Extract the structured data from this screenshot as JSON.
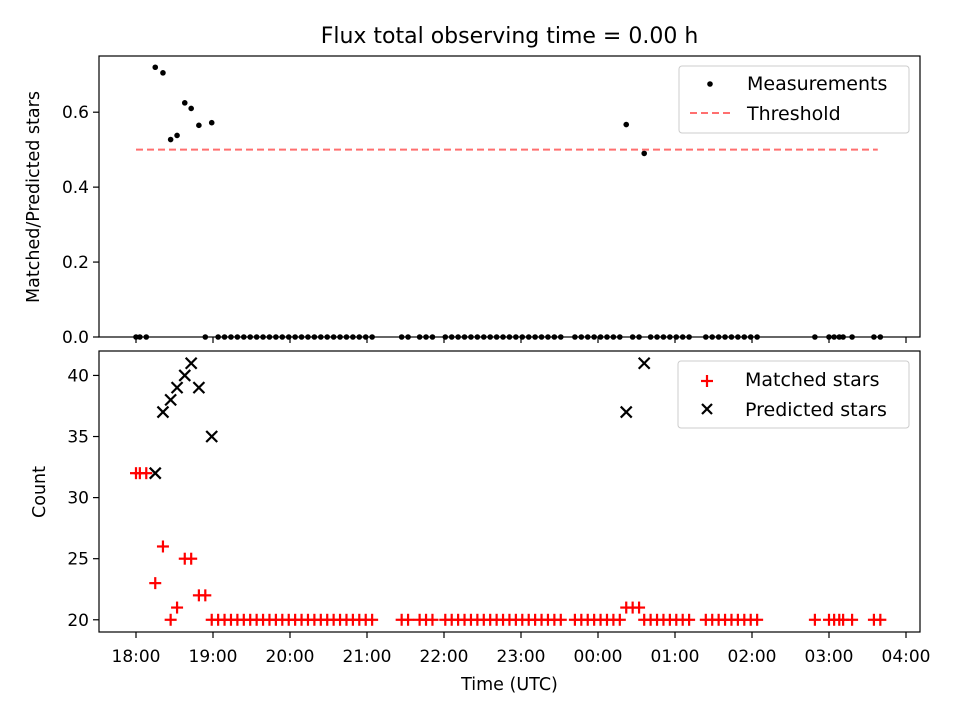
{
  "chart_data": [
    {
      "type": "scatter",
      "title": "Flux total observing time = 0.00 h",
      "ylabel": "Matched/Predicted stars",
      "xlabel": "",
      "xlim": [
        "17:45",
        "04:10"
      ],
      "ylim": [
        0,
        0.75
      ],
      "yticks": [
        0.0,
        0.2,
        0.4,
        0.6
      ],
      "ytick_labels": [
        "0.0",
        "0.2",
        "0.4",
        "0.6"
      ],
      "legend_position": "top-right",
      "series": [
        {
          "name": "Measurements",
          "marker": "dot",
          "color": "#000000",
          "points": [
            [
              "18:00",
              0
            ],
            [
              "18:03",
              0
            ],
            [
              "18:08",
              0
            ],
            [
              "18:15",
              0.72
            ],
            [
              "18:21",
              0.705
            ],
            [
              "18:27",
              0.527
            ],
            [
              "18:32",
              0.538
            ],
            [
              "18:38",
              0.625
            ],
            [
              "18:43",
              0.61
            ],
            [
              "18:49",
              0.565
            ],
            [
              "18:54",
              0
            ],
            [
              "18:59",
              0.572
            ],
            [
              "19:04",
              0
            ],
            [
              "19:09",
              0
            ],
            [
              "19:14",
              0
            ],
            [
              "19:19",
              0
            ],
            [
              "19:24",
              0
            ],
            [
              "19:29",
              0
            ],
            [
              "19:34",
              0
            ],
            [
              "19:39",
              0
            ],
            [
              "19:44",
              0
            ],
            [
              "19:49",
              0
            ],
            [
              "19:54",
              0
            ],
            [
              "19:59",
              0
            ],
            [
              "20:04",
              0
            ],
            [
              "20:09",
              0
            ],
            [
              "20:14",
              0
            ],
            [
              "20:19",
              0
            ],
            [
              "20:24",
              0
            ],
            [
              "20:29",
              0
            ],
            [
              "20:34",
              0
            ],
            [
              "20:39",
              0
            ],
            [
              "20:44",
              0
            ],
            [
              "20:49",
              0
            ],
            [
              "20:54",
              0
            ],
            [
              "20:59",
              0
            ],
            [
              "21:04",
              0
            ],
            [
              "21:27",
              0
            ],
            [
              "21:32",
              0
            ],
            [
              "21:41",
              0
            ],
            [
              "21:46",
              0
            ],
            [
              "21:51",
              0
            ],
            [
              "22:01",
              0
            ],
            [
              "22:06",
              0
            ],
            [
              "22:11",
              0
            ],
            [
              "22:16",
              0
            ],
            [
              "22:21",
              0
            ],
            [
              "22:26",
              0
            ],
            [
              "22:31",
              0
            ],
            [
              "22:36",
              0
            ],
            [
              "22:41",
              0
            ],
            [
              "22:46",
              0
            ],
            [
              "22:51",
              0
            ],
            [
              "22:56",
              0
            ],
            [
              "23:01",
              0
            ],
            [
              "23:06",
              0
            ],
            [
              "23:11",
              0
            ],
            [
              "23:16",
              0
            ],
            [
              "23:21",
              0
            ],
            [
              "23:26",
              0
            ],
            [
              "23:31",
              0
            ],
            [
              "23:42",
              0
            ],
            [
              "23:47",
              0
            ],
            [
              "23:52",
              0
            ],
            [
              "23:57",
              0
            ],
            [
              "00:02",
              0
            ],
            [
              "00:07",
              0
            ],
            [
              "00:12",
              0
            ],
            [
              "00:17",
              0
            ],
            [
              "00:22",
              0.567
            ],
            [
              "00:27",
              0
            ],
            [
              "00:32",
              0
            ],
            [
              "00:36",
              0.49
            ],
            [
              "00:41",
              0
            ],
            [
              "00:46",
              0
            ],
            [
              "00:51",
              0
            ],
            [
              "00:56",
              0
            ],
            [
              "01:01",
              0
            ],
            [
              "01:06",
              0
            ],
            [
              "01:11",
              0
            ],
            [
              "01:24",
              0
            ],
            [
              "01:29",
              0
            ],
            [
              "01:34",
              0
            ],
            [
              "01:39",
              0
            ],
            [
              "01:44",
              0
            ],
            [
              "01:49",
              0
            ],
            [
              "01:54",
              0
            ],
            [
              "01:59",
              0
            ],
            [
              "02:04",
              0
            ],
            [
              "02:49",
              0
            ],
            [
              "03:00",
              0
            ],
            [
              "03:04",
              0
            ],
            [
              "03:08",
              0
            ],
            [
              "03:11",
              0
            ],
            [
              "03:18",
              0
            ],
            [
              "03:35",
              0
            ],
            [
              "03:40",
              0
            ]
          ]
        },
        {
          "name": "Threshold",
          "style": "dashed",
          "color": "#ff6f6f",
          "points": [
            [
              "18:00",
              0.5
            ],
            [
              "03:38",
              0.5
            ]
          ]
        }
      ]
    },
    {
      "type": "scatter",
      "title": "",
      "ylabel": "Count",
      "xlabel": "Time (UTC)",
      "xlim": [
        "17:45",
        "04:10"
      ],
      "ylim": [
        19,
        42
      ],
      "yticks": [
        20,
        25,
        30,
        35,
        40
      ],
      "ytick_labels": [
        "20",
        "25",
        "30",
        "35",
        "40"
      ],
      "xticks": [
        "18:00",
        "19:00",
        "20:00",
        "21:00",
        "22:00",
        "23:00",
        "00:00",
        "01:00",
        "02:00",
        "03:00",
        "04:00"
      ],
      "legend_position": "top-right",
      "series": [
        {
          "name": "Matched stars",
          "marker": "plus",
          "color": "#ff0000",
          "points": [
            [
              "18:00",
              32
            ],
            [
              "18:03",
              32
            ],
            [
              "18:08",
              32
            ],
            [
              "18:15",
              23
            ],
            [
              "18:21",
              26
            ],
            [
              "18:27",
              20
            ],
            [
              "18:32",
              21
            ],
            [
              "18:38",
              25
            ],
            [
              "18:43",
              25
            ],
            [
              "18:49",
              22
            ],
            [
              "18:54",
              22
            ],
            [
              "18:59",
              20
            ],
            [
              "19:04",
              20
            ],
            [
              "19:09",
              20
            ],
            [
              "19:14",
              20
            ],
            [
              "19:19",
              20
            ],
            [
              "19:24",
              20
            ],
            [
              "19:29",
              20
            ],
            [
              "19:34",
              20
            ],
            [
              "19:39",
              20
            ],
            [
              "19:44",
              20
            ],
            [
              "19:49",
              20
            ],
            [
              "19:54",
              20
            ],
            [
              "19:59",
              20
            ],
            [
              "20:04",
              20
            ],
            [
              "20:09",
              20
            ],
            [
              "20:14",
              20
            ],
            [
              "20:19",
              20
            ],
            [
              "20:24",
              20
            ],
            [
              "20:29",
              20
            ],
            [
              "20:34",
              20
            ],
            [
              "20:39",
              20
            ],
            [
              "20:44",
              20
            ],
            [
              "20:49",
              20
            ],
            [
              "20:54",
              20
            ],
            [
              "20:59",
              20
            ],
            [
              "21:04",
              20
            ],
            [
              "21:27",
              20
            ],
            [
              "21:32",
              20
            ],
            [
              "21:41",
              20
            ],
            [
              "21:46",
              20
            ],
            [
              "21:51",
              20
            ],
            [
              "22:01",
              20
            ],
            [
              "22:06",
              20
            ],
            [
              "22:11",
              20
            ],
            [
              "22:16",
              20
            ],
            [
              "22:21",
              20
            ],
            [
              "22:26",
              20
            ],
            [
              "22:31",
              20
            ],
            [
              "22:36",
              20
            ],
            [
              "22:41",
              20
            ],
            [
              "22:46",
              20
            ],
            [
              "22:51",
              20
            ],
            [
              "22:56",
              20
            ],
            [
              "23:01",
              20
            ],
            [
              "23:06",
              20
            ],
            [
              "23:11",
              20
            ],
            [
              "23:16",
              20
            ],
            [
              "23:21",
              20
            ],
            [
              "23:26",
              20
            ],
            [
              "23:31",
              20
            ],
            [
              "23:42",
              20
            ],
            [
              "23:47",
              20
            ],
            [
              "23:52",
              20
            ],
            [
              "23:57",
              20
            ],
            [
              "00:02",
              20
            ],
            [
              "00:07",
              20
            ],
            [
              "00:12",
              20
            ],
            [
              "00:17",
              20
            ],
            [
              "00:22",
              21
            ],
            [
              "00:27",
              21
            ],
            [
              "00:32",
              21
            ],
            [
              "00:36",
              20
            ],
            [
              "00:41",
              20
            ],
            [
              "00:46",
              20
            ],
            [
              "00:51",
              20
            ],
            [
              "00:56",
              20
            ],
            [
              "01:01",
              20
            ],
            [
              "01:06",
              20
            ],
            [
              "01:11",
              20
            ],
            [
              "01:24",
              20
            ],
            [
              "01:29",
              20
            ],
            [
              "01:34",
              20
            ],
            [
              "01:39",
              20
            ],
            [
              "01:44",
              20
            ],
            [
              "01:49",
              20
            ],
            [
              "01:54",
              20
            ],
            [
              "01:59",
              20
            ],
            [
              "02:04",
              20
            ],
            [
              "02:49",
              20
            ],
            [
              "03:00",
              20
            ],
            [
              "03:04",
              20
            ],
            [
              "03:08",
              20
            ],
            [
              "03:11",
              20
            ],
            [
              "03:18",
              20
            ],
            [
              "03:35",
              20
            ],
            [
              "03:40",
              20
            ]
          ]
        },
        {
          "name": "Predicted stars",
          "marker": "x",
          "color": "#000000",
          "points": [
            [
              "18:15",
              32
            ],
            [
              "18:21",
              37
            ],
            [
              "18:27",
              38
            ],
            [
              "18:32",
              39
            ],
            [
              "18:38",
              40
            ],
            [
              "18:43",
              41
            ],
            [
              "18:49",
              39
            ],
            [
              "18:59",
              35
            ],
            [
              "00:22",
              37
            ],
            [
              "00:36",
              41
            ]
          ]
        }
      ]
    }
  ]
}
